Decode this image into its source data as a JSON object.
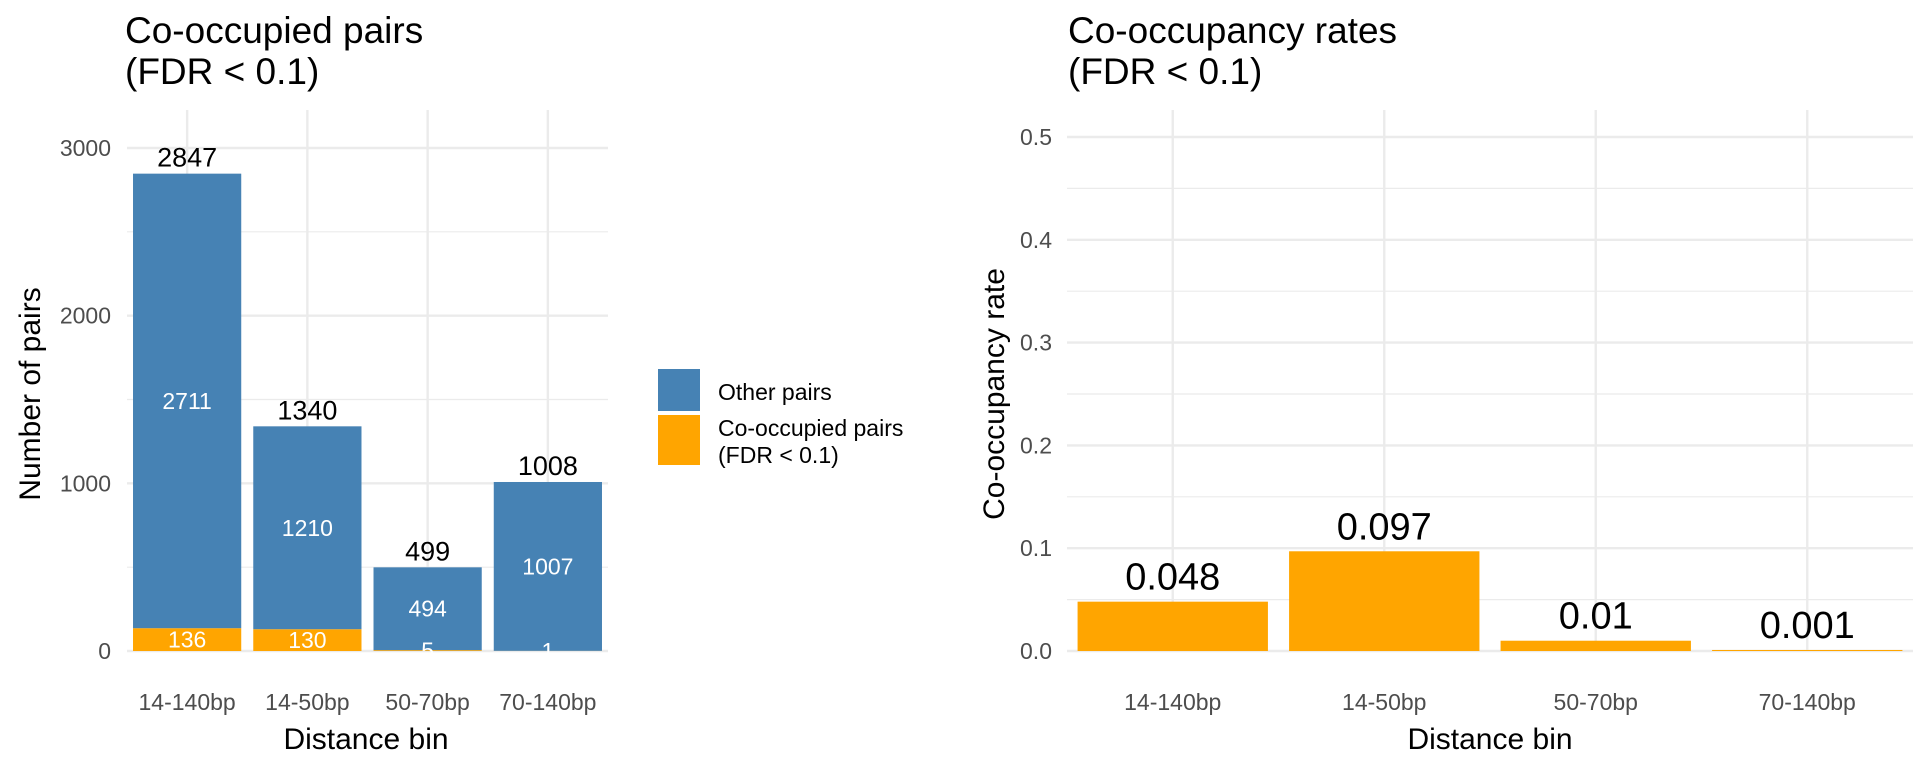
{
  "colors": {
    "other": "#4682B4",
    "cooccupied": "#FFA500",
    "grid": "#ebebeb",
    "tick": "#4d4d4d"
  },
  "chart_data": [
    {
      "type": "bar",
      "stacked": true,
      "title": [
        "Co-occupied pairs",
        "(FDR < 0.1)"
      ],
      "xlabel": "Distance bin",
      "ylabel": "Number of pairs",
      "ylim": [
        0,
        3000
      ],
      "yticks": [
        0,
        1000,
        2000,
        3000
      ],
      "grid": true,
      "categories": [
        "14-140bp",
        "14-50bp",
        "50-70bp",
        "70-140bp"
      ],
      "series": [
        {
          "name": "Co-occupied pairs (FDR < 0.1)",
          "legend_lines": [
            "Co-occupied pairs",
            "(FDR < 0.1)"
          ],
          "color": "#FFA500",
          "values": [
            136,
            130,
            5,
            1
          ]
        },
        {
          "name": "Other pairs",
          "legend_lines": [
            "Other pairs"
          ],
          "color": "#4682B4",
          "values": [
            2711,
            1210,
            494,
            1007
          ]
        }
      ],
      "totals": [
        2847,
        1340,
        499,
        1008
      ],
      "legend": "right"
    },
    {
      "type": "bar",
      "title": [
        "Co-occupancy rates",
        "(FDR < 0.1)"
      ],
      "xlabel": "Distance bin",
      "ylabel": "Co-occupancy rate",
      "ylim": [
        0,
        0.5
      ],
      "yticks": [
        0.0,
        0.1,
        0.2,
        0.3,
        0.4,
        0.5
      ],
      "ytick_labels": [
        "0.0",
        "0.1",
        "0.2",
        "0.3",
        "0.4",
        "0.5"
      ],
      "grid": true,
      "categories": [
        "14-140bp",
        "14-50bp",
        "50-70bp",
        "70-140bp"
      ],
      "values": [
        0.048,
        0.097,
        0.01,
        0.001
      ],
      "value_labels": [
        "0.048",
        "0.097",
        "0.01",
        "0.001"
      ],
      "color": "#FFA500"
    }
  ]
}
